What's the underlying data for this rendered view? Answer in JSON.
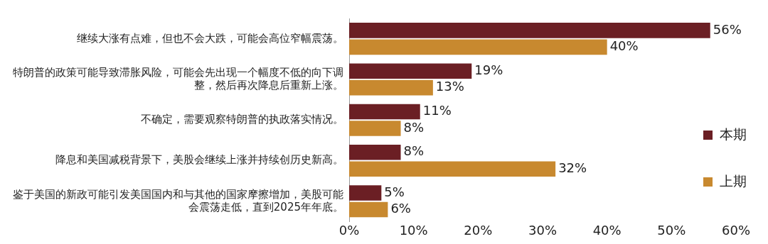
{
  "chart_data": {
    "type": "bar",
    "orientation": "horizontal",
    "categories": [
      "继续大涨有点难，但也不会大跌，可能会高位窄幅震荡。",
      "特朗普的政策可能导致滞胀风险，可能会先出现一个幅度不低的向下调整，然后再次降息后重新上涨。",
      "不确定，需要观察特朗普的执政落实情况。",
      "降息和美国减税背景下，美股会继续上涨并持续创历史新高。",
      "鉴于美国的新政可能引发美国国内和与其他的国家摩擦增加，美股可能会震荡走低，直到2025年年底。"
    ],
    "series": [
      {
        "name": "本期",
        "color": "#6b1f24",
        "values": [
          56,
          19,
          11,
          8,
          5
        ],
        "value_labels": [
          "56%",
          "19%",
          "11%",
          "8%",
          "5%"
        ]
      },
      {
        "name": "上期",
        "color": "#c8892f",
        "values": [
          40,
          13,
          8,
          32,
          6
        ],
        "value_labels": [
          "40%",
          "13%",
          "8%",
          "32%",
          "6%"
        ]
      }
    ],
    "xlim": [
      0,
      60
    ],
    "xticks": [
      {
        "value": 0,
        "label": "0%"
      },
      {
        "value": 10,
        "label": "10%"
      },
      {
        "value": 20,
        "label": "20%"
      },
      {
        "value": 30,
        "label": "30%"
      },
      {
        "value": 40,
        "label": "40%"
      },
      {
        "value": 50,
        "label": "50%"
      },
      {
        "value": 60,
        "label": "60%"
      }
    ],
    "grid": false,
    "legend": "bottom right"
  }
}
